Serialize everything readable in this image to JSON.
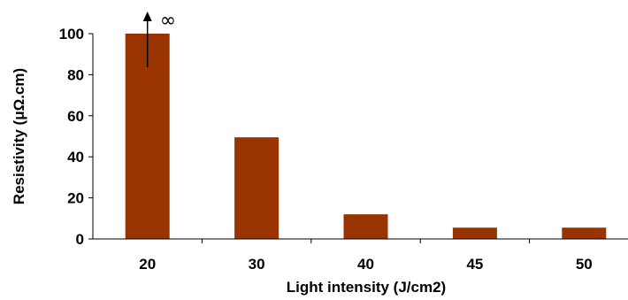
{
  "chart_data": {
    "type": "bar",
    "categories": [
      "20",
      "30",
      "40",
      "45",
      "50"
    ],
    "values": [
      100,
      49.5,
      12,
      5.5,
      5.5
    ],
    "title": "",
    "xlabel": "Light intensity (J/cm2)",
    "ylabel": "Resistivity (μΩ.cm)",
    "ylim": [
      0,
      100
    ],
    "yticks": [
      "0",
      "20",
      "40",
      "60",
      "80",
      "100"
    ],
    "grid": false,
    "bar_color": "#993300",
    "annotations": [
      {
        "category": "20",
        "text": "∞",
        "kind": "upward-arrow"
      }
    ]
  }
}
